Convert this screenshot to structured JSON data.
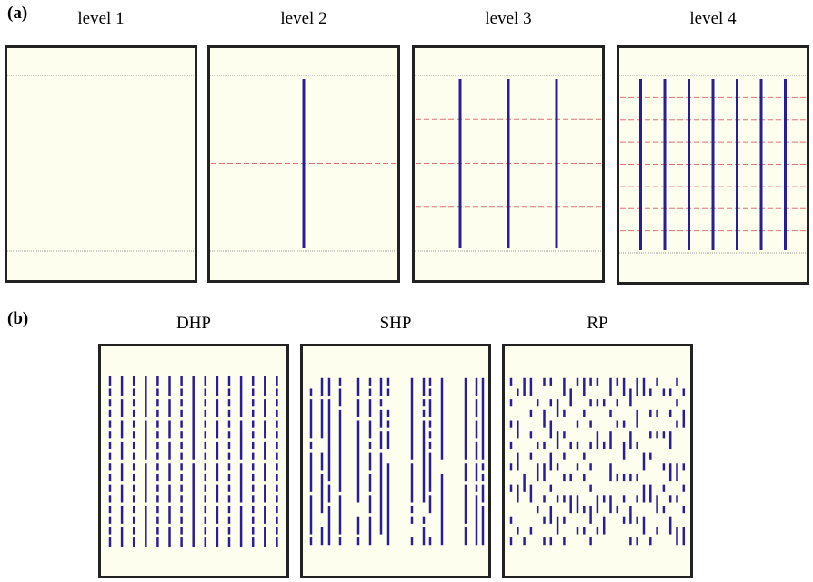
{
  "part_a": {
    "label": "(a)",
    "panels": [
      {
        "title": "level 1",
        "level": 1
      },
      {
        "title": "level 2",
        "level": 2
      },
      {
        "title": "level 3",
        "level": 3
      },
      {
        "title": "level 4",
        "level": 4
      }
    ]
  },
  "part_b": {
    "label": "(b)",
    "panels": [
      {
        "title": "DHP",
        "pattern": "DHP"
      },
      {
        "title": "SHP",
        "pattern": "SHP"
      },
      {
        "title": "RP",
        "pattern": "RP"
      }
    ]
  },
  "colors": {
    "panel_fill": "#fefeee",
    "border": "#222222",
    "line": "#2a1d99",
    "dashed": "#e07070",
    "dotted": "#999999"
  }
}
